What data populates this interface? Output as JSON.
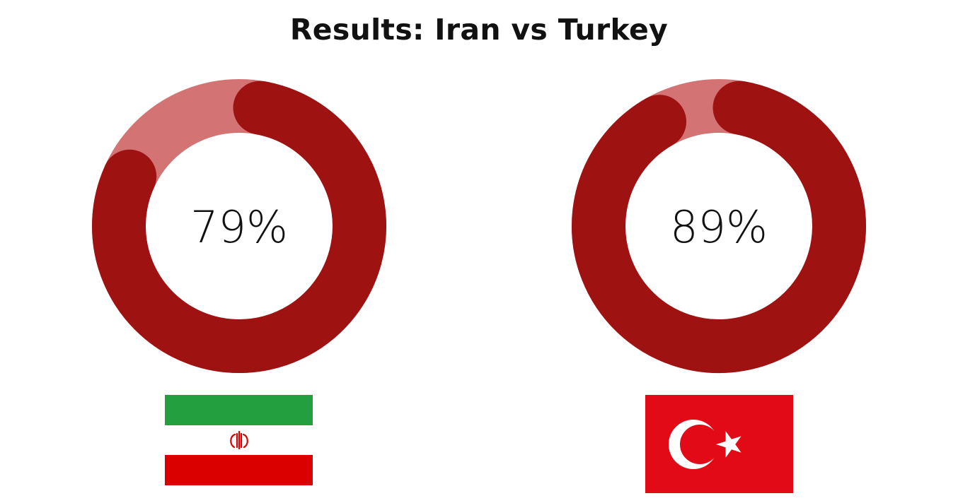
{
  "title": "Results: Iran vs Turkey",
  "colors": {
    "arc_value": "#9e1212",
    "arc_track": "#d47373",
    "text": "#111111",
    "iran_green": "#239f40",
    "iran_white": "#ffffff",
    "iran_red": "#da0000",
    "turkey_red": "#e30a17",
    "turkey_white": "#ffffff"
  },
  "chart_data": [
    {
      "type": "pie",
      "name": "Iran",
      "values": [
        79,
        21
      ],
      "label": "79%",
      "flag_icon": "iran-flag-icon"
    },
    {
      "type": "pie",
      "name": "Turkey",
      "values": [
        89,
        11
      ],
      "label": "89%",
      "flag_icon": "turkey-flag-icon"
    }
  ]
}
